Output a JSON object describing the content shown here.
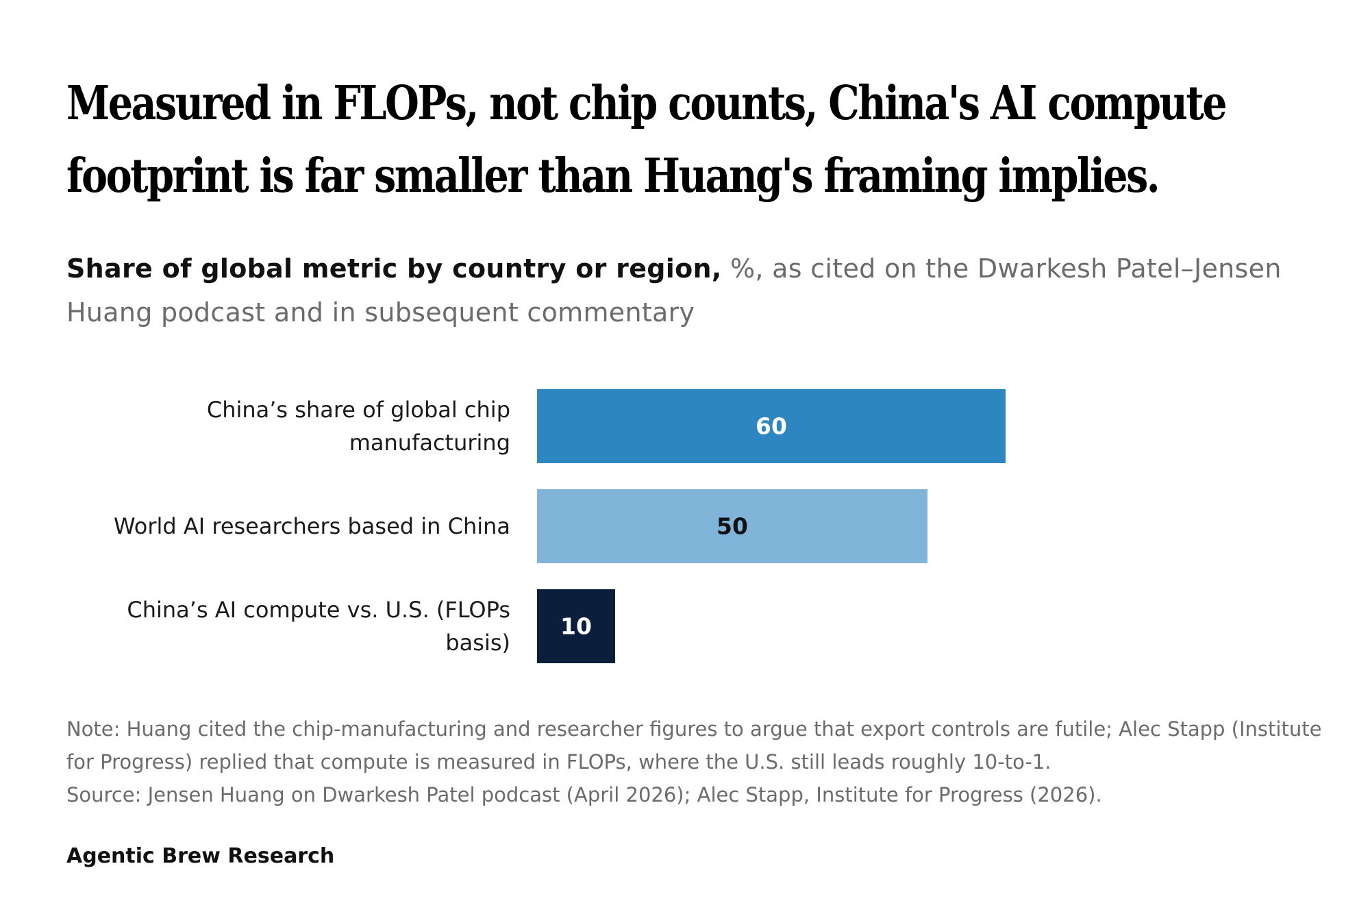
{
  "title_lines": [
    "Measured in FLOPs, not chip counts, China's AI compute",
    "footprint is far smaller than Huang's framing implies."
  ],
  "subtitle": {
    "lead": "Share of global metric by country or region,",
    "rest": " %, as cited on the Dwarkesh Patel–Jensen Huang podcast and in subsequent commentary"
  },
  "chart_data": {
    "type": "bar",
    "orientation": "horizontal",
    "categories": [
      [
        "China’s share of global chip",
        "manufacturing"
      ],
      [
        "World AI researchers based in China"
      ],
      [
        "China’s AI compute vs. U.S. (FLOPs",
        "basis)"
      ]
    ],
    "values": [
      60,
      50,
      10
    ],
    "value_labels": [
      "60",
      "50",
      "10"
    ],
    "unit": "%",
    "xlim": [
      0,
      100
    ],
    "grid": false,
    "legend": "none",
    "colors": [
      "#2e86c1",
      "#80b4d9",
      "#0b1f3d"
    ],
    "label_colors": [
      "#ffffff",
      "#111111",
      "#ffffff"
    ]
  },
  "notes": {
    "note": "Note: Huang cited the chip-manufacturing and researcher figures to argue that export controls are futile; Alec Stapp (Institute for Progress) replied that compute is measured in FLOPs, where the U.S. still leads roughly 10-to-1.",
    "source": "Source: Jensen Huang on Dwarkesh Patel podcast (April 2026); Alec Stapp, Institute for Progress (2026)."
  },
  "brand": "Agentic Brew Research"
}
